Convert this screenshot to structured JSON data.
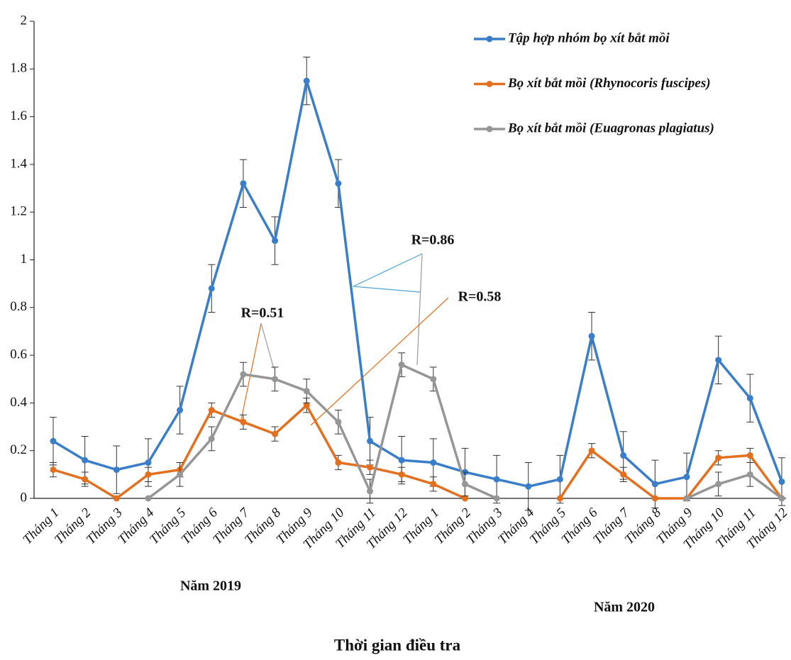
{
  "chart_data": {
    "type": "line",
    "categories": [
      "Tháng 1",
      "Tháng 2",
      "Tháng 3",
      "Tháng 4",
      "Tháng 5",
      "Tháng 6",
      "Tháng 7",
      "Tháng 8",
      "Tháng 9",
      "Tháng 10",
      "Tháng 11",
      "Tháng 12",
      "Tháng 1",
      "Tháng 2",
      "Tháng 3",
      "Tháng 4",
      "Tháng 5",
      "Tháng 6",
      "Tháng 7",
      "Tháng 8",
      "Tháng 9",
      "Tháng 10",
      "Tháng 11",
      "Tháng 12"
    ],
    "groups": [
      "Năm 2019",
      "Năm 2020"
    ],
    "xlabel": "Thời gian điều tra",
    "ylim": [
      0,
      2
    ],
    "yticks": [
      0,
      0.2,
      0.4,
      0.6,
      0.8,
      1,
      1.2,
      1.4,
      1.6,
      1.8,
      2
    ],
    "annotations": [
      "R=0.86",
      "R=0.58",
      "R=0.51"
    ],
    "series": [
      {
        "name": "Tập hợp nhóm bọ xít bắt mồi",
        "color": "#3a7dc9",
        "values": [
          0.24,
          0.16,
          0.12,
          0.15,
          0.37,
          0.88,
          1.32,
          1.08,
          1.75,
          1.32,
          0.24,
          0.16,
          0.15,
          0.11,
          0.08,
          0.05,
          0.08,
          0.68,
          0.18,
          0.06,
          0.09,
          0.58,
          0.42,
          0.07
        ],
        "errors": [
          0.1,
          0.1,
          0.1,
          0.1,
          0.1,
          0.1,
          0.1,
          0.1,
          0.1,
          0.1,
          0.1,
          0.1,
          0.1,
          0.1,
          0.1,
          0.1,
          0.1,
          0.1,
          0.1,
          0.1,
          0.1,
          0.1,
          0.1,
          0.1
        ]
      },
      {
        "name": "Bọ xít bắt mồi (Rhynocoris fuscipes)",
        "color": "#e3701f",
        "values": [
          0.12,
          0.08,
          0,
          0.1,
          0.12,
          0.37,
          0.32,
          0.27,
          0.39,
          0.15,
          0.13,
          0.1,
          0.06,
          0,
          null,
          null,
          0,
          0.2,
          0.1,
          0,
          0,
          0.17,
          0.18,
          0
        ],
        "errors": [
          0.03,
          0.03,
          null,
          0.03,
          0.03,
          0.03,
          0.03,
          0.03,
          0.03,
          0.03,
          0.03,
          0.03,
          0.03,
          null,
          null,
          null,
          null,
          0.03,
          0.03,
          null,
          null,
          0.03,
          0.03,
          null
        ]
      },
      {
        "name": "Bọ xít bắt mồi (Euagronas plagiatus)",
        "color": "#969696",
        "values": [
          null,
          null,
          null,
          0,
          0.1,
          0.25,
          0.52,
          0.5,
          0.45,
          0.32,
          0.03,
          0.56,
          0.5,
          0.06,
          0,
          null,
          null,
          null,
          null,
          null,
          0,
          0.06,
          0.1,
          0
        ],
        "errors": [
          null,
          null,
          null,
          null,
          0.05,
          0.05,
          0.05,
          0.05,
          0.05,
          0.05,
          0.05,
          0.05,
          0.05,
          0.05,
          null,
          null,
          null,
          null,
          null,
          null,
          null,
          0.05,
          0.05,
          null
        ]
      }
    ]
  }
}
